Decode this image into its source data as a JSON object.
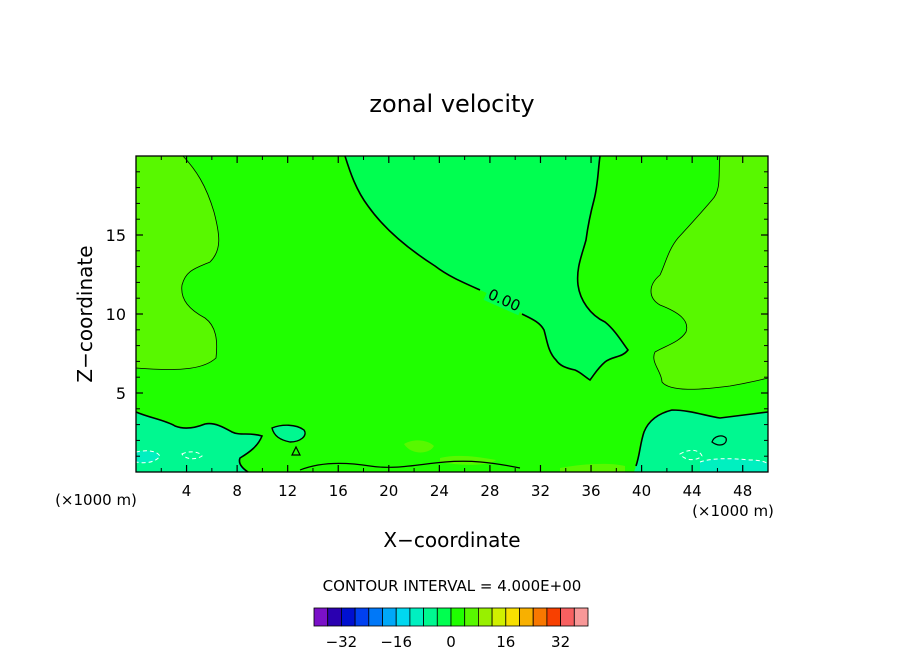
{
  "chart_data": {
    "type": "heatmap",
    "title": "zonal velocity",
    "xlabel": "X−coordinate",
    "ylabel": "Z−coordinate",
    "x_unit_left": "(×1000 m)",
    "x_unit_right": "(×1000 m)",
    "xlim": [
      0,
      50
    ],
    "ylim": [
      0,
      20
    ],
    "x_ticks": [
      4,
      8,
      12,
      16,
      20,
      24,
      28,
      32,
      36,
      40,
      44,
      48
    ],
    "y_ticks": [
      5,
      10,
      15
    ],
    "contour_label": "0.00",
    "contour_interval_text": "CONTOUR INTERVAL = 4.000E+00",
    "colorbar": {
      "colors": [
        "#7a10c8",
        "#2a00b0",
        "#0010d0",
        "#0040f0",
        "#0078f8",
        "#00a8f8",
        "#00d8f0",
        "#00f0c0",
        "#00f890",
        "#00ff50",
        "#20ff00",
        "#58f800",
        "#98f000",
        "#d0f000",
        "#f8e000",
        "#f8b000",
        "#f87800",
        "#f84000",
        "#f86060",
        "#f89898"
      ],
      "tick_labels": [
        "−32",
        "−16",
        "0",
        "16",
        "32"
      ],
      "tick_values": [
        -32,
        -16,
        0,
        16,
        32
      ],
      "range": [
        -40,
        40
      ]
    },
    "field_colors": {
      "background": "#20ff00",
      "positive_lobe": "#58f800",
      "zero_region": "#00ff50",
      "near_surface": "#00f890",
      "strong_low": "#00f0c0"
    }
  }
}
